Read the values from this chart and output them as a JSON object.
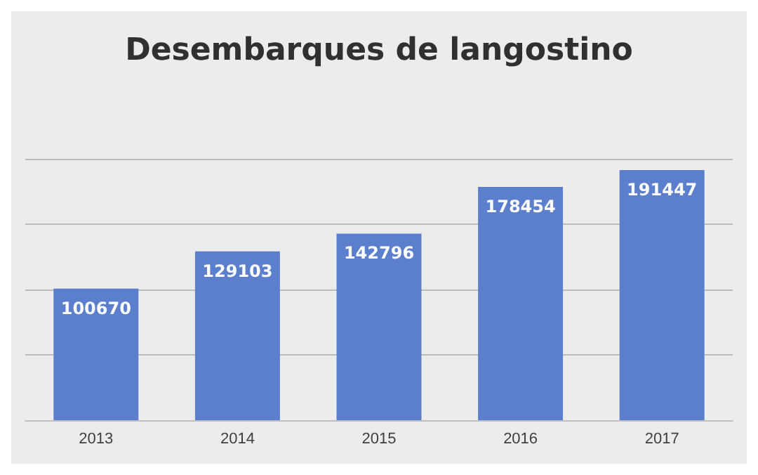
{
  "chart_data": {
    "type": "bar",
    "title": "Desembarques de langostino",
    "categories": [
      "2013",
      "2014",
      "2015",
      "2016",
      "2017"
    ],
    "values": [
      100670,
      129103,
      142796,
      178454,
      191447
    ],
    "color": "#5b7fcc",
    "ylim": [
      0,
      200000
    ],
    "yticks": [
      {
        "value": 0,
        "label": null
      },
      {
        "value": 50000,
        "label": null
      },
      {
        "value": 100000,
        "label": null
      },
      {
        "value": 150000,
        "label": null
      },
      {
        "value": 200000,
        "label": null
      }
    ],
    "tick_labels": "x",
    "grid": "y",
    "data_labels": true
  }
}
